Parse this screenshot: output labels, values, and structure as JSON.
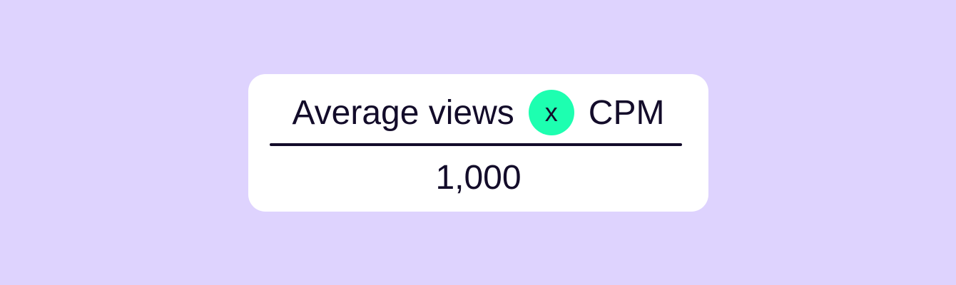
{
  "formula": {
    "numerator_left": "Average views",
    "operator": "x",
    "numerator_right": "CPM",
    "denominator": "1,000"
  },
  "colors": {
    "background": "#ded3fe",
    "card": "#ffffff",
    "operator_circle": "#1dffb0",
    "text": "#130c2a"
  }
}
